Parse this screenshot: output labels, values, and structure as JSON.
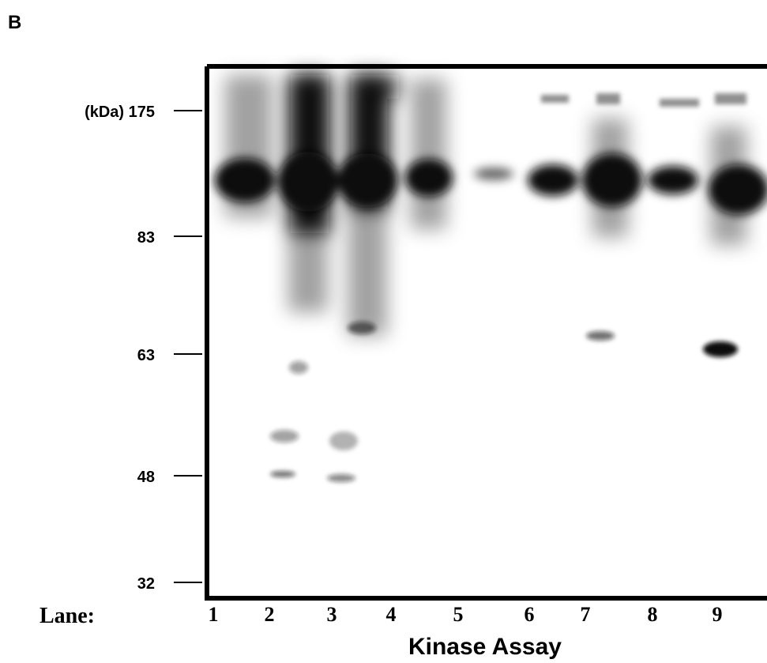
{
  "panel_label": "B",
  "markers": [
    "(kDa) 175",
    "83",
    "63",
    "48",
    "32"
  ],
  "lane_label": "Lane:",
  "lanes": [
    "1",
    "2",
    "3",
    "4",
    "5",
    "6",
    "7",
    "8",
    "9"
  ],
  "caption": "Kinase Assay"
}
